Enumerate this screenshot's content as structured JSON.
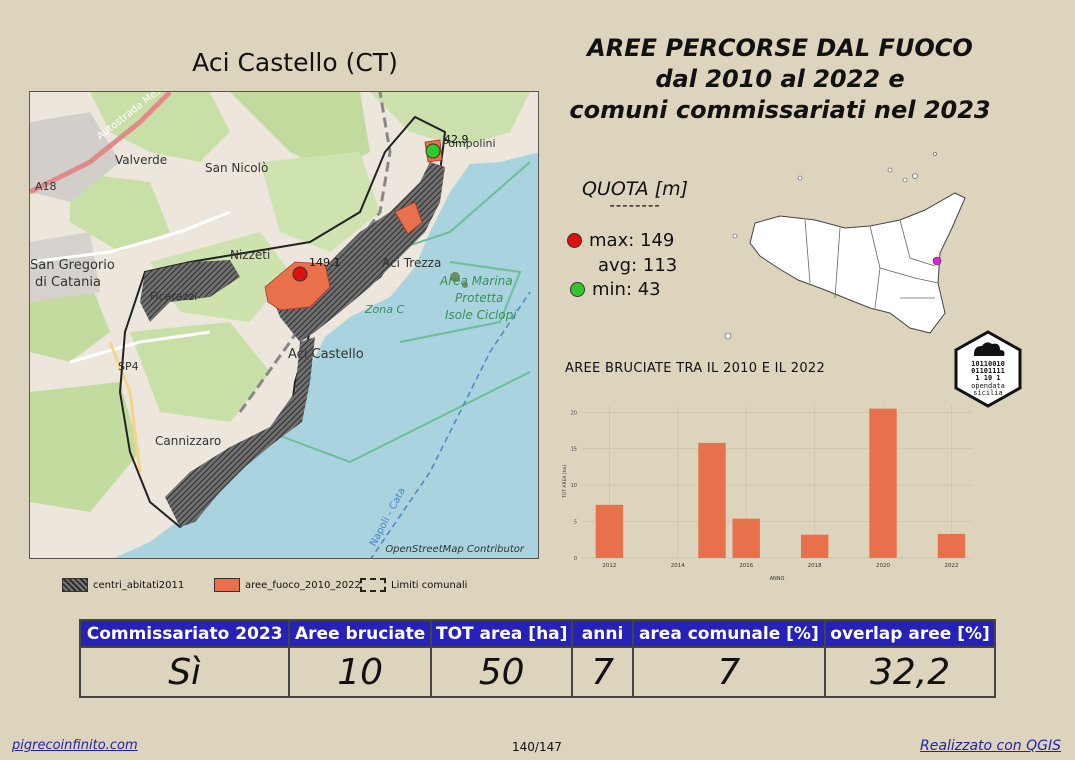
{
  "map": {
    "title": "Aci Castello (CT)",
    "attribution": "OpenStreetMap Contributor",
    "labels": {
      "motorway": "Autostrada Messi",
      "valverde": "Valverde",
      "san_nicolo": "San Nicolò",
      "a18": "A18",
      "san_gregorio": "San Gregorio",
      "di_catania": "di Catania",
      "nizzeti": "Nizzeti",
      "ficarazzi": "Ficarazzi",
      "aci_trezza": "Aci Trezza",
      "area_marina": "Area Marina",
      "protetta": "Protetta",
      "isole_ciclopi": "Isole Ciclopi",
      "zona_c": "Zona C",
      "aci_castello": "Aci Castello",
      "sp4": "SP4",
      "cannizzaro": "Cannizzaro",
      "pompolini": "Pompolini",
      "ferry": "Napoli - Cata",
      "max_label": "149.1",
      "min_label": "42.9"
    }
  },
  "header": {
    "line1": "AREE PERCORSE DAL FUOCO",
    "line2": "dal 2010 al 2022 e",
    "line3": "comuni commissariati nel 2023"
  },
  "quota": {
    "title": "QUOTA [m]",
    "separator": "--------",
    "max": "max: 149",
    "avg": "avg: 113",
    "min": "min: 43",
    "max_color": "#e01010",
    "min_color": "#2ec82e"
  },
  "sicily": {
    "marker_color": "#e020e0"
  },
  "logo": {
    "line1": "10110010",
    "line2": "01101111",
    "line3": "1  10 1",
    "name1": "opendata",
    "name2": "sicilia"
  },
  "chart_data": {
    "type": "bar",
    "title": "AREE BRUCIATE TRA IL 2010 E IL 2022",
    "xlabel": "ANNO",
    "ylabel": "TOT AREA [ha]",
    "x": [
      2012,
      2015,
      2016,
      2018,
      2020,
      2022
    ],
    "values": [
      7.3,
      15.8,
      5.4,
      3.2,
      20.5,
      3.3
    ],
    "xticks": [
      "2012",
      "2014",
      "2016",
      "2018",
      "2020",
      "2022"
    ],
    "yticks": [
      "0",
      "5",
      "10",
      "15",
      "20"
    ],
    "xlim": [
      2011.2,
      2022.6
    ],
    "ylim": [
      0,
      21
    ],
    "color": "#e8704a",
    "grid": true
  },
  "legend": {
    "centri": "centri_abitati2011",
    "aree": "aree_fuoco_2010_2022",
    "limiti": "Limiti comunali",
    "fire_color": "#e8704a"
  },
  "table": {
    "headers": [
      "Commissariato 2023",
      "Aree bruciate",
      "TOT area [ha]",
      "anni",
      "area comunale [%]",
      "overlap aree [%]"
    ],
    "values": [
      "Sì",
      "10",
      "50",
      "7",
      "7",
      "32,2"
    ]
  },
  "footer": {
    "left": "pigrecoinfinito.com",
    "center": "140/147",
    "right": "Realizzato con QGIS"
  }
}
